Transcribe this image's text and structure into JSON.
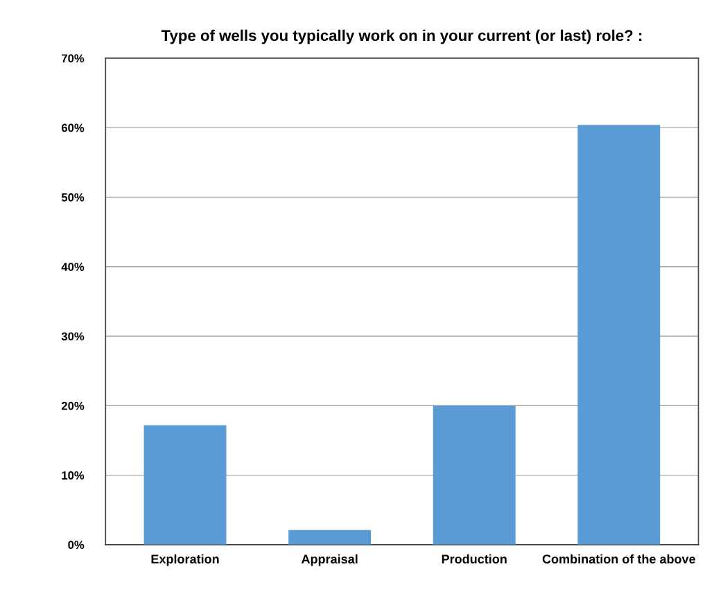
{
  "chart_data": {
    "type": "bar",
    "title": "Type of wells you typically work on in your current (or last) role? :",
    "categories": [
      "Exploration",
      "Appraisal",
      "Production",
      "Combination of the above"
    ],
    "values": [
      17.2,
      2.1,
      20.0,
      60.4
    ],
    "color": "#5b9bd5",
    "ylim": [
      0,
      70
    ],
    "yticks": [
      {
        "value": 0,
        "label": "0%"
      },
      {
        "value": 10,
        "label": "10%"
      },
      {
        "value": 20,
        "label": "20%"
      },
      {
        "value": 30,
        "label": "30%"
      },
      {
        "value": 40,
        "label": "40%"
      },
      {
        "value": 50,
        "label": "50%"
      },
      {
        "value": 60,
        "label": "60%"
      },
      {
        "value": 70,
        "label": "70%"
      }
    ],
    "grid": "y",
    "legend": false
  }
}
